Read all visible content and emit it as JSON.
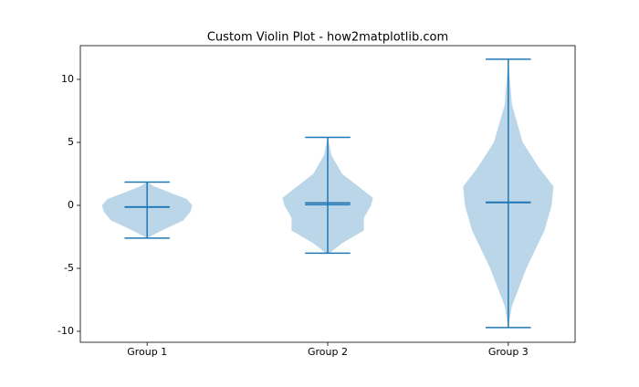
{
  "chart_data": {
    "type": "violin",
    "title": "Custom Violin Plot - how2matplotlib.com",
    "categories": [
      "Group 1",
      "Group 2",
      "Group 3"
    ],
    "color": "#1f77b4",
    "xlim": [
      0.63,
      3.37
    ],
    "ylim": [
      -10.87,
      12.68
    ],
    "yticks": [
      -10,
      -5,
      0,
      5,
      10
    ],
    "groups": [
      {
        "min": -2.6,
        "max": 1.85,
        "mean": -0.15,
        "median": -0.12,
        "kde_y": [
          -2.6,
          -2,
          -1.2,
          -0.5,
          0,
          0.5,
          1,
          1.5,
          1.85
        ],
        "kde_width": [
          0,
          0.08,
          0.2,
          0.24,
          0.25,
          0.22,
          0.13,
          0.04,
          0
        ]
      },
      {
        "min": -3.8,
        "max": 5.4,
        "mean": 0.2,
        "median": 0.05,
        "kde_y": [
          -3.8,
          -3,
          -2,
          -1,
          0,
          0.6,
          1.5,
          2.5,
          4,
          5.4
        ],
        "kde_width": [
          0.01,
          0.08,
          0.2,
          0.2,
          0.24,
          0.25,
          0.17,
          0.08,
          0.02,
          0
        ]
      },
      {
        "min": -9.7,
        "max": 11.6,
        "mean": 0.25,
        "median": 0.22,
        "kde_y": [
          -9.7,
          -8,
          -5,
          -2,
          0,
          1.5,
          3,
          5,
          8,
          11.6
        ],
        "kde_width": [
          0,
          0.02,
          0.1,
          0.2,
          0.24,
          0.25,
          0.17,
          0.08,
          0.02,
          0
        ]
      }
    ]
  }
}
